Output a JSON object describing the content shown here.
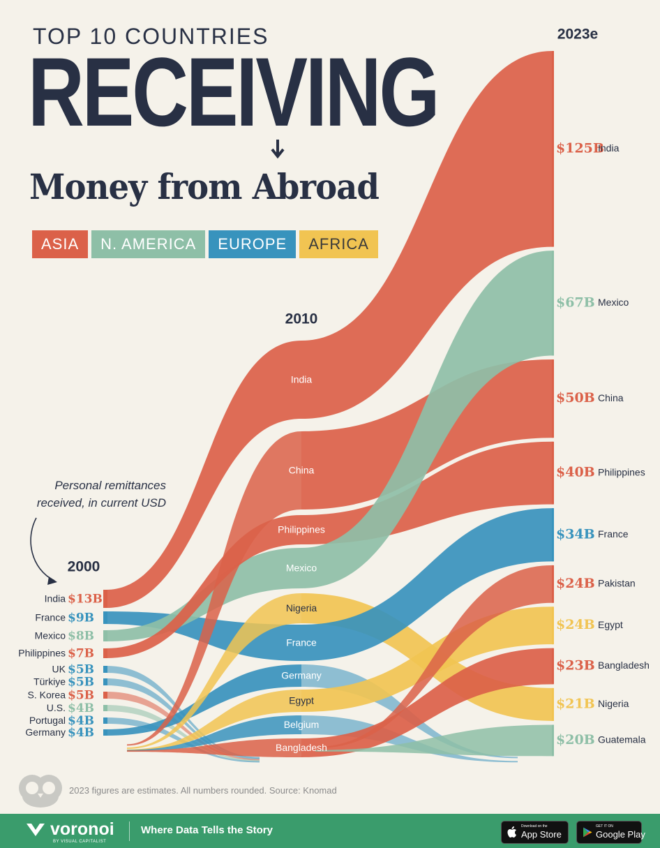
{
  "header": {
    "kicker": "TOP 10 COUNTRIES",
    "headline": "RECEIVING",
    "subhead": "Money from Abroad"
  },
  "legend": [
    {
      "label": "ASIA",
      "color": "#db6149"
    },
    {
      "label": "N. AMERICA",
      "color": "#8ebfa7"
    },
    {
      "label": "EUROPE",
      "color": "#3893bd"
    },
    {
      "label": "AFRICA",
      "color": "#f1c452"
    }
  ],
  "annotation": {
    "line1": "Personal remittances",
    "line2": "received, in current USD"
  },
  "chart_data": {
    "type": "sankey",
    "unit": "USD billions",
    "years": [
      "2000",
      "2010",
      "2023e"
    ],
    "region_colors": {
      "Asia": "#db6149",
      "N. America": "#8ebfa7",
      "Europe": "#3893bd",
      "Africa": "#f1c452"
    },
    "rankings": {
      "2000": [
        {
          "country": "India",
          "value": 13,
          "label": "$13B",
          "region": "Asia"
        },
        {
          "country": "France",
          "value": 9,
          "label": "$9B",
          "region": "Europe"
        },
        {
          "country": "Mexico",
          "value": 8,
          "label": "$8B",
          "region": "N. America"
        },
        {
          "country": "Philippines",
          "value": 7,
          "label": "$7B",
          "region": "Asia"
        },
        {
          "country": "UK",
          "value": 5,
          "label": "$5B",
          "region": "Europe"
        },
        {
          "country": "Türkiye",
          "value": 5,
          "label": "$5B",
          "region": "Europe"
        },
        {
          "country": "S. Korea",
          "value": 5,
          "label": "$5B",
          "region": "Asia"
        },
        {
          "country": "U.S.",
          "value": 4,
          "label": "$4B",
          "region": "N. America"
        },
        {
          "country": "Portugal",
          "value": 4,
          "label": "$4B",
          "region": "Europe"
        },
        {
          "country": "Germany",
          "value": 4,
          "label": "$4B",
          "region": "Europe"
        }
      ],
      "2010": [
        {
          "country": "India",
          "region": "Asia"
        },
        {
          "country": "China",
          "region": "Asia"
        },
        {
          "country": "Philippines",
          "region": "Asia"
        },
        {
          "country": "Mexico",
          "region": "N. America"
        },
        {
          "country": "Nigeria",
          "region": "Africa"
        },
        {
          "country": "France",
          "region": "Europe"
        },
        {
          "country": "Germany",
          "region": "Europe"
        },
        {
          "country": "Egypt",
          "region": "Africa"
        },
        {
          "country": "Belgium",
          "region": "Europe"
        },
        {
          "country": "Bangladesh",
          "region": "Asia"
        }
      ],
      "2023e": [
        {
          "country": "India",
          "value": 125,
          "label": "$125B",
          "region": "Asia"
        },
        {
          "country": "Mexico",
          "value": 67,
          "label": "$67B",
          "region": "N. America"
        },
        {
          "country": "China",
          "value": 50,
          "label": "$50B",
          "region": "Asia"
        },
        {
          "country": "Philippines",
          "value": 40,
          "label": "$40B",
          "region": "Asia"
        },
        {
          "country": "France",
          "value": 34,
          "label": "$34B",
          "region": "Europe"
        },
        {
          "country": "Pakistan",
          "value": 24,
          "label": "$24B",
          "region": "Asia"
        },
        {
          "country": "Egypt",
          "value": 24,
          "label": "$24B",
          "region": "Africa"
        },
        {
          "country": "Bangladesh",
          "value": 23,
          "label": "$23B",
          "region": "Asia"
        },
        {
          "country": "Nigeria",
          "value": 21,
          "label": "$21B",
          "region": "Africa"
        },
        {
          "country": "Guatemala",
          "value": 20,
          "label": "$20B",
          "region": "N. America"
        }
      ]
    }
  },
  "footer": {
    "note": "2023 figures are estimates. All numbers rounded. Source: Knomad",
    "brand": "voronoi",
    "brand_sub": "BY VISUAL CAPITALIST",
    "tagline": "Where Data Tells the Story",
    "app_store_small": "Download on the",
    "app_store_big": "App Store",
    "google_small": "GET IT ON",
    "google_big": "Google Play"
  }
}
